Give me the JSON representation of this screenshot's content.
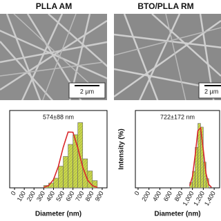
{
  "images": [
    {
      "title": "PLLA AM",
      "scale_bar": "2 µm"
    },
    {
      "title": "BTO/PLLA RM",
      "scale_bar": "2 µm"
    }
  ],
  "chart_data": [
    {
      "type": "histogram",
      "annotation": "574±88 nm",
      "x_label": "Diameter (nm)",
      "bins": [
        300,
        350,
        400,
        450,
        500,
        550,
        600,
        650,
        700,
        750,
        800,
        850
      ],
      "values": [
        1,
        2,
        4,
        9,
        13,
        18,
        22,
        27,
        12,
        7,
        3
      ],
      "color": "#c9d64e",
      "fit": {
        "color": "#d9262a",
        "x": [
          300,
          350,
          400,
          450,
          500,
          550,
          600,
          650,
          700,
          750,
          800,
          850
        ],
        "values": [
          0.19,
          0.94,
          3.4,
          8.9,
          16.8,
          23.1,
          23.0,
          16.5,
          8.6,
          3.2,
          0.9,
          0.18
        ]
      },
      "xlim": [
        -50,
        950
      ],
      "ylim": [
        0,
        32
      ],
      "xticks": [
        0,
        100,
        200,
        300,
        400,
        500,
        600,
        700,
        800,
        900
      ]
    },
    {
      "type": "histogram",
      "annotation": "722±172 nm",
      "x_label": "Diameter (nm)",
      "y_label": "Intensity (%)",
      "bins": [
        950,
        1000,
        1050,
        1100,
        1150,
        1200,
        1250,
        1300
      ],
      "values": [
        3,
        9,
        22,
        35,
        33,
        14,
        5
      ],
      "color": "#c9d64e",
      "fit": {
        "color": "#d9262a",
        "x": [
          950,
          1000,
          1050,
          1100,
          1150,
          1200,
          1250,
          1300,
          1350
        ],
        "values": [
          1.2,
          6.1,
          17.7,
          31.0,
          32.6,
          20.6,
          7.8,
          1.8,
          0.3
        ]
      },
      "xlim": [
        -50,
        1500
      ],
      "ylim": [
        0,
        42
      ],
      "xticks": [
        0,
        200,
        400,
        600,
        800,
        {
          "value": 1000,
          "label": "1,000"
        },
        {
          "value": 1200,
          "label": "1,200"
        },
        {
          "value": 1400,
          "label": "1,400"
        }
      ]
    }
  ]
}
